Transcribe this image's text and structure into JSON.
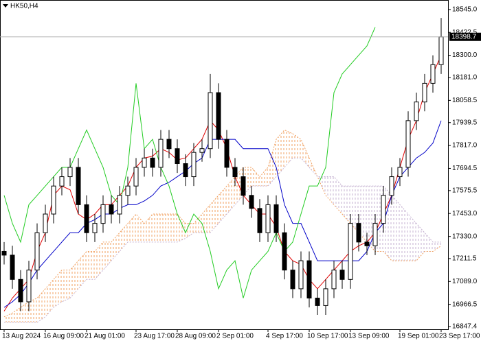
{
  "chart_data": {
    "type": "candlestick",
    "title": "HK50,H4",
    "categories": [
      "13 Aug 2024",
      null,
      null,
      null,
      null,
      "16 Aug 09:00",
      null,
      null,
      null,
      null,
      "21 Aug 01:00",
      null,
      null,
      null,
      null,
      null,
      "23 Aug 17:00",
      null,
      null,
      null,
      null,
      "28 Aug 09:00",
      null,
      null,
      null,
      null,
      "2 Sep 01:00",
      null,
      null,
      null,
      null,
      null,
      "4 Sep 17:00",
      null,
      null,
      null,
      null,
      "10 Sep 17:00",
      null,
      null,
      null,
      null,
      "13 Sep 09:00",
      null,
      null,
      null,
      null,
      null,
      "19 Sep 01:00",
      null,
      null,
      null,
      null,
      "23 Sep 17:00"
    ],
    "open": [
      17250,
      17230,
      17100,
      16980,
      17150,
      17350,
      17450,
      17600,
      17650,
      17700,
      17500,
      17350,
      17400,
      17500,
      17450,
      17550,
      17600,
      17700,
      17750,
      17700,
      17850,
      17800,
      17720,
      17650,
      17780,
      17800,
      18100,
      17850,
      17700,
      17650,
      17550,
      17480,
      17350,
      17500,
      17350,
      17150,
      17050,
      17200,
      17000,
      16960,
      17050,
      17150,
      17100,
      17400,
      17300,
      17280,
      17400,
      17550,
      17650,
      17700,
      17950,
      18050,
      18150,
      18250
    ],
    "high": [
      17300,
      17280,
      17150,
      17200,
      17400,
      17500,
      17650,
      17700,
      17750,
      17750,
      17550,
      17450,
      17550,
      17550,
      17600,
      17650,
      17750,
      17800,
      17800,
      17900,
      17900,
      17850,
      17770,
      17830,
      17850,
      18200,
      18150,
      17900,
      17750,
      17700,
      17600,
      17530,
      17550,
      17550,
      17400,
      17200,
      17250,
      17250,
      17050,
      17100,
      17200,
      17200,
      17450,
      17450,
      17350,
      17450,
      17600,
      17700,
      17750,
      18000,
      18100,
      18200,
      18300,
      18500
    ],
    "low": [
      17180,
      17050,
      16930,
      16930,
      17100,
      17300,
      17400,
      17550,
      17600,
      17450,
      17300,
      17300,
      17350,
      17400,
      17400,
      17500,
      17550,
      17650,
      17650,
      17650,
      17750,
      17670,
      17600,
      17600,
      17730,
      17750,
      17800,
      17650,
      17600,
      17500,
      17430,
      17300,
      17300,
      17300,
      17100,
      17000,
      17000,
      16950,
      16910,
      16910,
      17000,
      17050,
      17050,
      17250,
      17230,
      17230,
      17350,
      17500,
      17600,
      17650,
      17900,
      18000,
      18100,
      18200
    ],
    "close": [
      17230,
      17100,
      16980,
      17150,
      17350,
      17450,
      17600,
      17650,
      17700,
      17500,
      17350,
      17400,
      17500,
      17450,
      17550,
      17600,
      17700,
      17750,
      17700,
      17850,
      17800,
      17720,
      17650,
      17780,
      17800,
      18100,
      17850,
      17700,
      17650,
      17550,
      17480,
      17350,
      17500,
      17350,
      17150,
      17050,
      17200,
      17000,
      16960,
      17050,
      17150,
      17100,
      17400,
      17300,
      17280,
      17400,
      17550,
      17650,
      17700,
      17950,
      18050,
      18150,
      18250,
      18398.7
    ],
    "series": [
      {
        "color": "#e00000",
        "values": [
          16930,
          17000,
          17050,
          17100,
          17250,
          17350,
          17550,
          17600,
          17580,
          17450,
          17420,
          17450,
          17500,
          17500,
          17550,
          17600,
          17700,
          17750,
          17760,
          17800,
          17780,
          17740,
          17750,
          17800,
          17850,
          17950,
          17900,
          17800,
          17650,
          17550,
          17500,
          17450,
          17450,
          17380,
          17250,
          17200,
          17180,
          17100,
          17050,
          17100,
          17150,
          17200,
          17250,
          17280,
          17300,
          17350,
          17450,
          17550,
          17700,
          17850,
          17950,
          18100,
          18200,
          18300
        ]
      },
      {
        "color": "#0000c8",
        "values": [
          16950,
          16980,
          17020,
          17080,
          17150,
          17200,
          17250,
          17300,
          17350,
          17350,
          17400,
          17420,
          17450,
          17450,
          17480,
          17500,
          17500,
          17520,
          17550,
          17600,
          17620,
          17650,
          17680,
          17720,
          17750,
          17850,
          17850,
          17850,
          17850,
          17800,
          17800,
          17800,
          17800,
          17700,
          17500,
          17400,
          17400,
          17300,
          17200,
          17200,
          17200,
          17200,
          17200,
          17200,
          17250,
          17350,
          17400,
          17550,
          17650,
          17700,
          17750,
          17780,
          17830,
          17950
        ]
      },
      {
        "color": "#22cc22",
        "values": [
          17550,
          17400,
          17300,
          17500,
          17550,
          17600,
          17650,
          17700,
          17700,
          17800,
          17900,
          17800,
          17700,
          17550,
          17500,
          17700,
          18150,
          17800,
          17850,
          17700,
          17600,
          17450,
          17350,
          17450,
          17400,
          17250,
          17050,
          17150,
          17200,
          17000,
          17150,
          17200,
          17250,
          17350,
          17250,
          17300,
          17450,
          17600,
          17600,
          17700,
          18100,
          18200,
          18250,
          18300,
          18350,
          18450,
          null,
          null,
          null,
          null,
          null,
          null,
          null,
          null
        ]
      }
    ],
    "cloud": {
      "bull_color": "#f0a060",
      "bear_color": "#c4b0d0",
      "span_a": [
        16900,
        16920,
        16950,
        16980,
        17000,
        17050,
        17100,
        17150,
        17150,
        17200,
        17250,
        17250,
        17300,
        17300,
        17350,
        17400,
        17450,
        17400,
        17450,
        17450,
        17450,
        17450,
        17400,
        17400,
        17450,
        17500,
        17550,
        17600,
        17650,
        17700,
        17700,
        17650,
        17700,
        17850,
        17900,
        17880,
        17850,
        17750,
        17650,
        17550,
        17500,
        17450,
        17400,
        17350,
        17300,
        17250,
        17250,
        17200,
        17200,
        17200,
        17200,
        17250,
        17250,
        17280
      ],
      "span_b": [
        16870,
        16870,
        16870,
        16870,
        16870,
        16900,
        16950,
        16980,
        17000,
        17050,
        17100,
        17100,
        17150,
        17200,
        17250,
        17300,
        17300,
        17300,
        17300,
        17300,
        17300,
        17300,
        17320,
        17350,
        17350,
        17350,
        17400,
        17450,
        17500,
        17550,
        17600,
        17600,
        17600,
        17650,
        17700,
        17750,
        17750,
        17700,
        17650,
        17650,
        17650,
        17600,
        17600,
        17600,
        17600,
        17600,
        17600,
        17550,
        17500,
        17450,
        17400,
        17350,
        17300,
        17300
      ]
    },
    "bid": 18398.7,
    "ylim": [
      16833,
      18596
    ],
    "yticks": [
      {
        "value": 18545,
        "label": "18545.0"
      },
      18422.5,
      {
        "value": 18300,
        "label": "18300.0"
      },
      {
        "value": 18181,
        "label": "18181.0"
      },
      18058.5,
      17939.5,
      {
        "value": 17817,
        "label": "17817.0"
      },
      17694.5,
      17575.5,
      {
        "value": 17453,
        "label": "17453.0"
      },
      {
        "value": 17330,
        "label": "17330.0"
      },
      17211.5,
      {
        "value": 17089,
        "label": "17089.0"
      },
      16966.5,
      16847.4
    ]
  }
}
